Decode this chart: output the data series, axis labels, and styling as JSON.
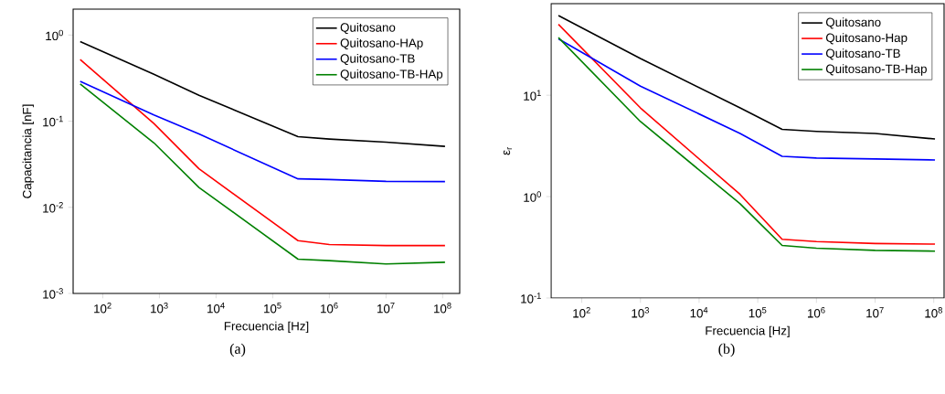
{
  "chart_data": [
    {
      "type": "line",
      "xlabel": "Frecuencia [Hz]",
      "ylabel": "Capacitancia [nF]",
      "log": "xy",
      "legend": "top right",
      "grid": false,
      "xlim": [
        30,
        200000000
      ],
      "ylim": [
        0.001,
        2
      ],
      "xticks": [
        {
          "value": 100,
          "label": "10$^{2}$"
        },
        {
          "value": 1000,
          "label": "10$^{3}$"
        },
        {
          "value": 10000,
          "label": "10$^{4}$"
        },
        {
          "value": 100000,
          "label": "10$^{5}$"
        },
        {
          "value": 1000000,
          "label": "10$^{6}$"
        },
        {
          "value": 10000000,
          "label": "10$^{7}$"
        },
        {
          "value": 100000000,
          "label": "10$^{8}$"
        }
      ],
      "yticks": [
        {
          "value": 0.001,
          "label": "10$^{-3}$"
        },
        {
          "value": 0.01,
          "label": "10$^{-2}$"
        },
        {
          "value": 0.1,
          "label": "10$^{-1}$"
        },
        {
          "value": 1,
          "label": "10$^{0}$"
        }
      ],
      "x": [
        40,
        800,
        5000,
        280000,
        1000000,
        10000000,
        110000000
      ],
      "series": [
        {
          "name": "Quitosano",
          "color": "#000000",
          "values": [
            0.84,
            0.35,
            0.2,
            0.066,
            0.062,
            0.057,
            0.051
          ]
        },
        {
          "name": "Quitosano-HAp",
          "color": "#ff0000",
          "values": [
            0.52,
            0.094,
            0.028,
            0.0041,
            0.0037,
            0.0036,
            0.0036
          ]
        },
        {
          "name": "Quitosano-TB",
          "color": "#0000ff",
          "values": [
            0.29,
            0.118,
            0.071,
            0.0214,
            0.021,
            0.02,
            0.0199
          ]
        },
        {
          "name": "Quitosano-TB-HAp",
          "color": "#008000",
          "values": [
            0.27,
            0.056,
            0.017,
            0.0025,
            0.0024,
            0.0022,
            0.0023
          ]
        }
      ],
      "annotations": [
        "(a)"
      ]
    },
    {
      "type": "line",
      "xlabel": "Frecuencia [Hz]",
      "ylabel": "ε$_{r}$",
      "log": "xy",
      "legend": "top right",
      "grid": false,
      "xlim": [
        30,
        150000000
      ],
      "ylim": [
        0.1,
        80
      ],
      "xticks": [
        {
          "value": 100,
          "label": "10$^{2}$"
        },
        {
          "value": 1000,
          "label": "10$^{3}$"
        },
        {
          "value": 10000,
          "label": "10$^{4}$"
        },
        {
          "value": 100000,
          "label": "10$^{5}$"
        },
        {
          "value": 1000000,
          "label": "10$^{6}$"
        },
        {
          "value": 10000000,
          "label": "10$^{7}$"
        },
        {
          "value": 100000000,
          "label": "10$^{8}$"
        }
      ],
      "yticks": [
        {
          "value": 0.1,
          "label": "10$^{-1}$"
        },
        {
          "value": 1,
          "label": "10$^{0}$"
        },
        {
          "value": 10,
          "label": "10$^{1}$"
        }
      ],
      "x": [
        40,
        1000,
        50000,
        260000,
        1000000,
        10000000,
        105000000
      ],
      "series": [
        {
          "name": "Quitosano",
          "color": "#000000",
          "values": [
            61,
            23,
            7.5,
            4.6,
            4.4,
            4.2,
            3.7
          ]
        },
        {
          "name": "Quitosano-Hap",
          "color": "#ff0000",
          "values": [
            50,
            7.5,
            1.05,
            0.38,
            0.36,
            0.345,
            0.34
          ]
        },
        {
          "name": "Quitosano-TB",
          "color": "#0000ff",
          "values": [
            36,
            12.3,
            4.2,
            2.5,
            2.4,
            2.35,
            2.3
          ]
        },
        {
          "name": "Quitosano-TB-Hap",
          "color": "#008000",
          "values": [
            37,
            5.5,
            0.85,
            0.33,
            0.31,
            0.295,
            0.29
          ]
        }
      ],
      "annotations": [
        "(b)"
      ]
    }
  ]
}
